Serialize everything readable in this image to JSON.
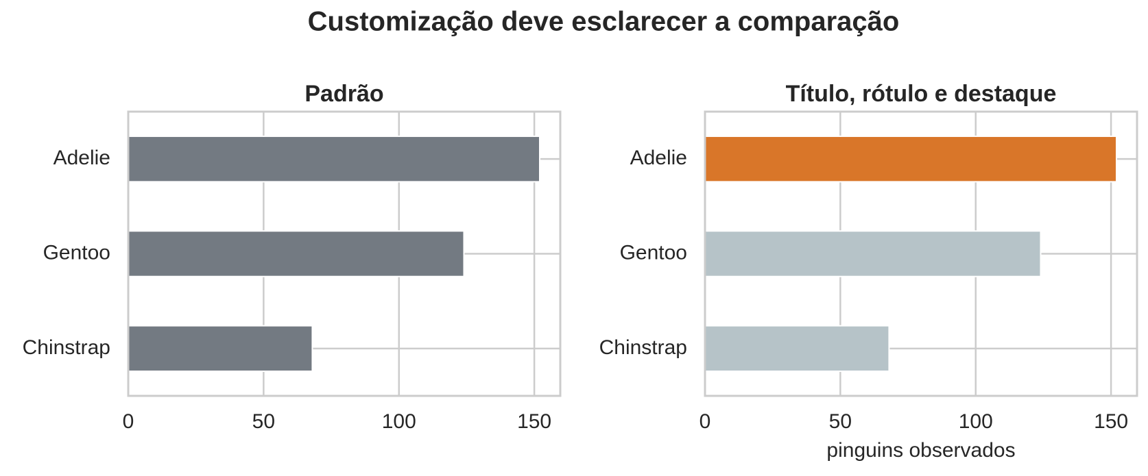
{
  "title": "Customização deve esclarecer a comparação",
  "chart_data": [
    {
      "type": "barh",
      "title": "Padrão",
      "categories": [
        "Adelie",
        "Gentoo",
        "Chinstrap"
      ],
      "values": [
        152,
        124,
        68
      ],
      "color": "#737a82",
      "xlim": [
        0,
        159.6
      ],
      "xticks": [
        0,
        50,
        100,
        150
      ],
      "grid": true
    },
    {
      "type": "barh",
      "title": "Título, rótulo e destaque",
      "xlabel": "pinguins observados",
      "categories": [
        "Adelie",
        "Gentoo",
        "Chinstrap"
      ],
      "values": [
        152,
        124,
        68
      ],
      "colors": [
        "#d97629",
        "#b6c3c8",
        "#b6c3c8"
      ],
      "xlim": [
        0,
        159.6
      ],
      "xticks": [
        0,
        50,
        100,
        150
      ],
      "grid": true
    }
  ]
}
